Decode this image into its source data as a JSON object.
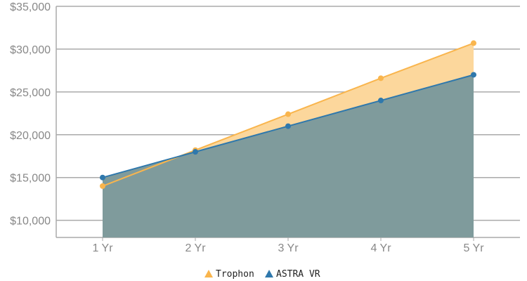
{
  "chart_data": {
    "type": "area",
    "categories": [
      "1 Yr",
      "2 Yr",
      "3 Yr",
      "4 Yr",
      "5 Yr"
    ],
    "ylim": [
      8000,
      35000
    ],
    "yticks": [
      10000,
      15000,
      20000,
      25000,
      30000,
      35000
    ],
    "ytick_labels": [
      "$10,000",
      "$15,000",
      "$20,000",
      "$25,000",
      "$30,000",
      "$35,000"
    ],
    "grid": true,
    "legend": "bottom",
    "series": [
      {
        "name": "Trophon",
        "values": [
          14000,
          18200,
          22400,
          26600,
          30700
        ],
        "color": "#f9b54d",
        "fill": "#fcd79c"
      },
      {
        "name": "ASTRA VR",
        "values": [
          15000,
          18000,
          21000,
          24000,
          27000
        ],
        "color": "#2f78ac",
        "fill": "#7f9b9c"
      }
    ]
  }
}
